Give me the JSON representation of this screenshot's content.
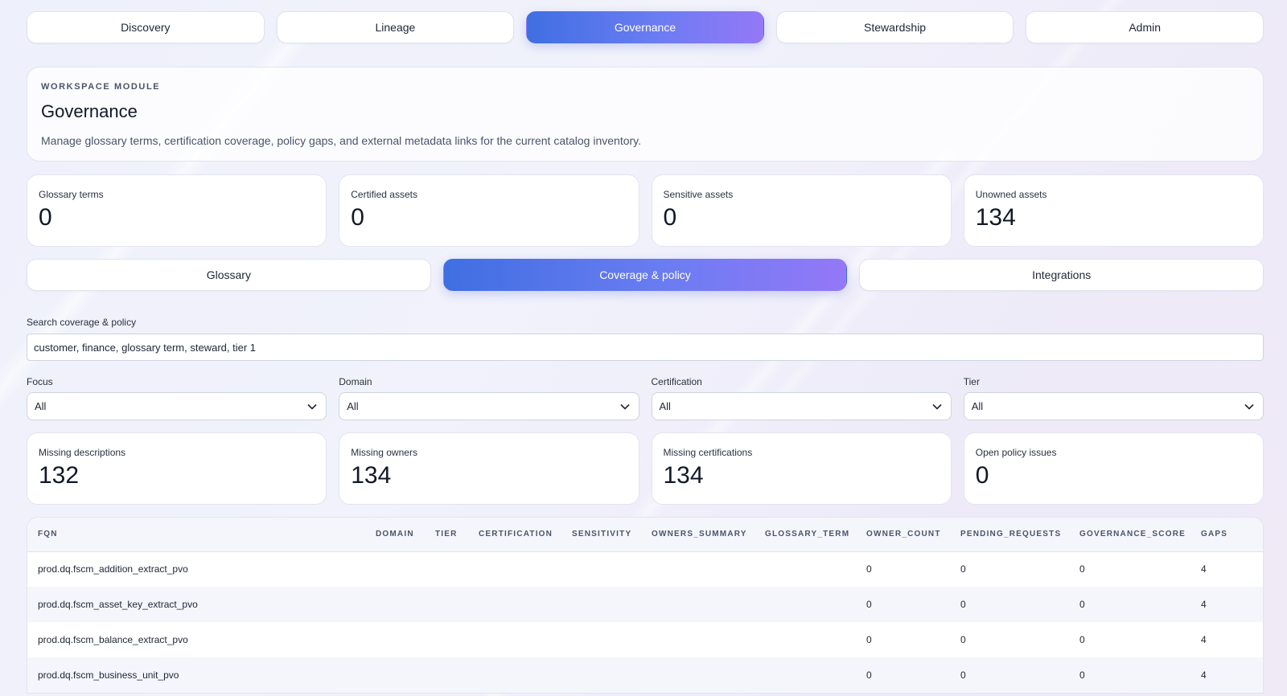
{
  "nav": {
    "tabs": [
      {
        "label": "Discovery",
        "active": false
      },
      {
        "label": "Lineage",
        "active": false
      },
      {
        "label": "Governance",
        "active": true
      },
      {
        "label": "Stewardship",
        "active": false
      },
      {
        "label": "Admin",
        "active": false
      }
    ]
  },
  "hero": {
    "eyebrow": "WORKSPACE MODULE",
    "title": "Governance",
    "description": "Manage glossary terms, certification coverage, policy gaps, and external metadata links for the current catalog inventory."
  },
  "summary_stats": [
    {
      "label": "Glossary terms",
      "value": "0"
    },
    {
      "label": "Certified assets",
      "value": "0"
    },
    {
      "label": "Sensitive assets",
      "value": "0"
    },
    {
      "label": "Unowned assets",
      "value": "134"
    }
  ],
  "subtabs": [
    {
      "label": "Glossary",
      "active": false
    },
    {
      "label": "Coverage & policy",
      "active": true
    },
    {
      "label": "Integrations",
      "active": false
    }
  ],
  "search": {
    "label": "Search coverage & policy",
    "value": "customer, finance, glossary term, steward, tier 1"
  },
  "filters": [
    {
      "label": "Focus",
      "value": "All"
    },
    {
      "label": "Domain",
      "value": "All"
    },
    {
      "label": "Certification",
      "value": "All"
    },
    {
      "label": "Tier",
      "value": "All"
    }
  ],
  "coverage_stats": [
    {
      "label": "Missing descriptions",
      "value": "132"
    },
    {
      "label": "Missing owners",
      "value": "134"
    },
    {
      "label": "Missing certifications",
      "value": "134"
    },
    {
      "label": "Open policy issues",
      "value": "0"
    }
  ],
  "table": {
    "columns": [
      "FQN",
      "DOMAIN",
      "TIER",
      "CERTIFICATION",
      "SENSITIVITY",
      "OWNERS_SUMMARY",
      "GLOSSARY_TERM",
      "OWNER_COUNT",
      "PENDING_REQUESTS",
      "GOVERNANCE_SCORE",
      "GAPS"
    ],
    "rows": [
      [
        "prod.dq.fscm_addition_extract_pvo",
        "",
        "",
        "",
        "",
        "",
        "",
        "0",
        "0",
        "0",
        "4"
      ],
      [
        "prod.dq.fscm_asset_key_extract_pvo",
        "",
        "",
        "",
        "",
        "",
        "",
        "0",
        "0",
        "0",
        "4"
      ],
      [
        "prod.dq.fscm_balance_extract_pvo",
        "",
        "",
        "",
        "",
        "",
        "",
        "0",
        "0",
        "0",
        "4"
      ],
      [
        "prod.dq.fscm_business_unit_pvo",
        "",
        "",
        "",
        "",
        "",
        "",
        "0",
        "0",
        "0",
        "4"
      ]
    ]
  },
  "icons": {
    "select_arrow": "chevron-down-icon"
  }
}
